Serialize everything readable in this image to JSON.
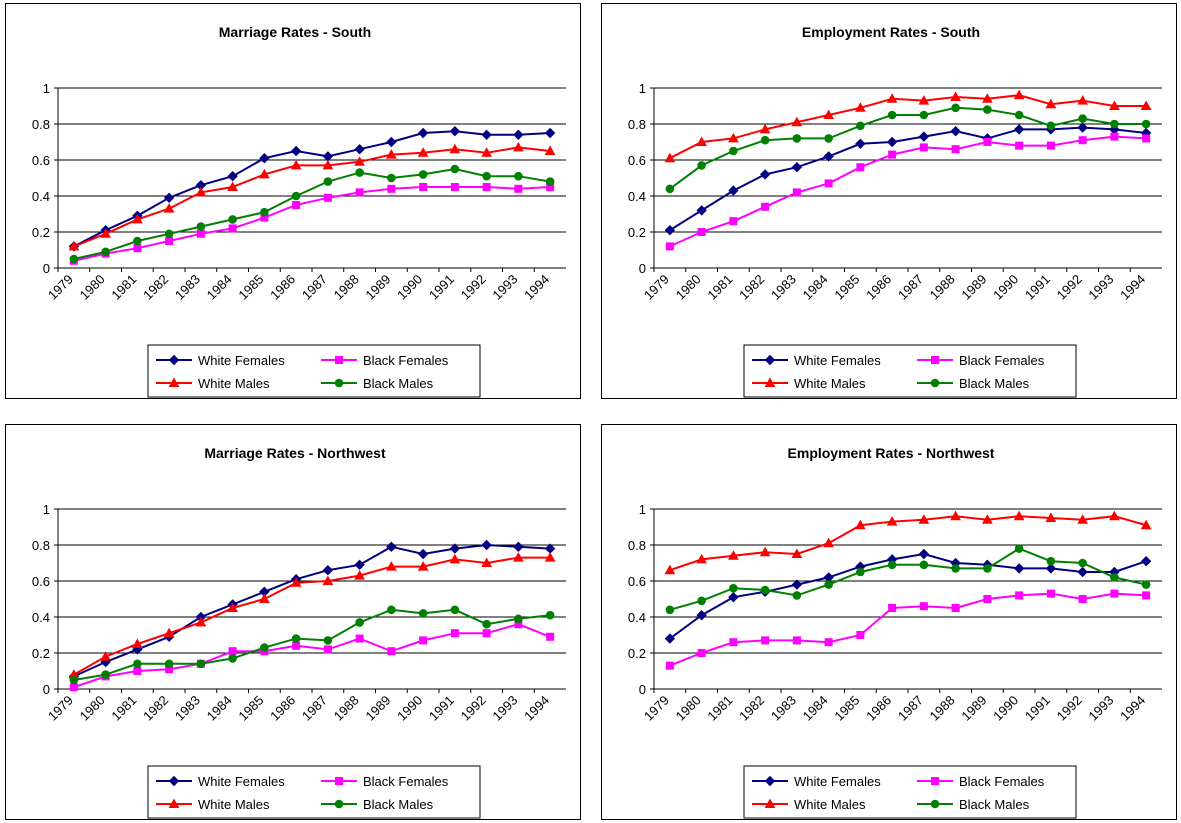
{
  "chart_data": [
    {
      "type": "line",
      "title": "Marriage Rates - South",
      "categories": [
        "1979",
        "1980",
        "1981",
        "1982",
        "1983",
        "1984",
        "1985",
        "1986",
        "1987",
        "1988",
        "1989",
        "1990",
        "1991",
        "1992",
        "1993",
        "1994"
      ],
      "ylim": [
        0,
        1
      ],
      "yticks": [
        0,
        0.2,
        0.4,
        0.6,
        0.8,
        1
      ],
      "grid": true,
      "series": [
        {
          "name": "White Females",
          "color": "#000080",
          "marker": "diamond",
          "values": [
            0.12,
            0.21,
            0.29,
            0.39,
            0.46,
            0.51,
            0.61,
            0.65,
            0.62,
            0.66,
            0.7,
            0.75,
            0.76,
            0.74,
            0.74,
            0.75
          ]
        },
        {
          "name": "Black Females",
          "color": "#ff00ff",
          "marker": "square",
          "values": [
            0.04,
            0.08,
            0.11,
            0.15,
            0.19,
            0.22,
            0.28,
            0.35,
            0.39,
            0.42,
            0.44,
            0.45,
            0.45,
            0.45,
            0.44,
            0.45
          ]
        },
        {
          "name": "White Males",
          "color": "#ff0000",
          "marker": "triangle",
          "values": [
            0.12,
            0.19,
            0.27,
            0.33,
            0.42,
            0.45,
            0.52,
            0.57,
            0.57,
            0.59,
            0.63,
            0.64,
            0.66,
            0.64,
            0.67,
            0.65
          ]
        },
        {
          "name": "Black Males",
          "color": "#008000",
          "marker": "circle",
          "values": [
            0.05,
            0.09,
            0.15,
            0.19,
            0.23,
            0.27,
            0.31,
            0.4,
            0.48,
            0.53,
            0.5,
            0.52,
            0.55,
            0.51,
            0.51,
            0.48
          ]
        }
      ]
    },
    {
      "type": "line",
      "title": "Employment Rates  - South",
      "categories": [
        "1979",
        "1980",
        "1981",
        "1982",
        "1983",
        "1984",
        "1985",
        "1986",
        "1987",
        "1988",
        "1989",
        "1990",
        "1991",
        "1992",
        "1993",
        "1994"
      ],
      "ylim": [
        0,
        1
      ],
      "yticks": [
        0,
        0.2,
        0.4,
        0.6,
        0.8,
        1
      ],
      "grid": true,
      "series": [
        {
          "name": "White Females",
          "color": "#000080",
          "marker": "diamond",
          "values": [
            0.21,
            0.32,
            0.43,
            0.52,
            0.56,
            0.62,
            0.69,
            0.7,
            0.73,
            0.76,
            0.72,
            0.77,
            0.77,
            0.78,
            0.77,
            0.75
          ]
        },
        {
          "name": "Black Females",
          "color": "#ff00ff",
          "marker": "square",
          "values": [
            0.12,
            0.2,
            0.26,
            0.34,
            0.42,
            0.47,
            0.56,
            0.63,
            0.67,
            0.66,
            0.7,
            0.68,
            0.68,
            0.71,
            0.73,
            0.72
          ]
        },
        {
          "name": "White Males",
          "color": "#ff0000",
          "marker": "triangle",
          "values": [
            0.61,
            0.7,
            0.72,
            0.77,
            0.81,
            0.85,
            0.89,
            0.94,
            0.93,
            0.95,
            0.94,
            0.96,
            0.91,
            0.93,
            0.9,
            0.9
          ]
        },
        {
          "name": "Black Males",
          "color": "#008000",
          "marker": "circle",
          "values": [
            0.44,
            0.57,
            0.65,
            0.71,
            0.72,
            0.72,
            0.79,
            0.85,
            0.85,
            0.89,
            0.88,
            0.85,
            0.79,
            0.83,
            0.8,
            0.8
          ]
        }
      ]
    },
    {
      "type": "line",
      "title": "Marriage Rates - Northwest",
      "categories": [
        "1979",
        "1980",
        "1981",
        "1982",
        "1983",
        "1984",
        "1985",
        "1986",
        "1987",
        "1988",
        "1989",
        "1990",
        "1991",
        "1992",
        "1993",
        "1994"
      ],
      "ylim": [
        0,
        1
      ],
      "yticks": [
        0,
        0.2,
        0.4,
        0.6,
        0.8,
        1
      ],
      "grid": true,
      "series": [
        {
          "name": "White Females",
          "color": "#000080",
          "marker": "diamond",
          "values": [
            0.07,
            0.15,
            0.22,
            0.29,
            0.4,
            0.47,
            0.54,
            0.61,
            0.66,
            0.69,
            0.79,
            0.75,
            0.78,
            0.8,
            0.79,
            0.78
          ]
        },
        {
          "name": "Black Females",
          "color": "#ff00ff",
          "marker": "square",
          "values": [
            0.01,
            0.07,
            0.1,
            0.11,
            0.14,
            0.21,
            0.21,
            0.24,
            0.22,
            0.28,
            0.21,
            0.27,
            0.31,
            0.31,
            0.36,
            0.29
          ]
        },
        {
          "name": "White Males",
          "color": "#ff0000",
          "marker": "triangle",
          "values": [
            0.08,
            0.18,
            0.25,
            0.31,
            0.37,
            0.45,
            0.5,
            0.59,
            0.6,
            0.63,
            0.68,
            0.68,
            0.72,
            0.7,
            0.73,
            0.73
          ]
        },
        {
          "name": "Black Males",
          "color": "#008000",
          "marker": "circle",
          "values": [
            0.05,
            0.08,
            0.14,
            0.14,
            0.14,
            0.17,
            0.23,
            0.28,
            0.27,
            0.37,
            0.44,
            0.42,
            0.44,
            0.36,
            0.39,
            0.41
          ]
        }
      ]
    },
    {
      "type": "line",
      "title": "Employment Rates - Northwest",
      "categories": [
        "1979",
        "1980",
        "1981",
        "1982",
        "1983",
        "1984",
        "1985",
        "1986",
        "1987",
        "1988",
        "1989",
        "1990",
        "1991",
        "1992",
        "1993",
        "1994"
      ],
      "ylim": [
        0,
        1
      ],
      "yticks": [
        0,
        0.2,
        0.4,
        0.6,
        0.8,
        1
      ],
      "grid": true,
      "series": [
        {
          "name": "White Females",
          "color": "#000080",
          "marker": "diamond",
          "values": [
            0.28,
            0.41,
            0.51,
            0.54,
            0.58,
            0.62,
            0.68,
            0.72,
            0.75,
            0.7,
            0.69,
            0.67,
            0.67,
            0.65,
            0.65,
            0.71
          ]
        },
        {
          "name": "Black Females",
          "color": "#ff00ff",
          "marker": "square",
          "values": [
            0.13,
            0.2,
            0.26,
            0.27,
            0.27,
            0.26,
            0.3,
            0.45,
            0.46,
            0.45,
            0.5,
            0.52,
            0.53,
            0.5,
            0.53,
            0.52
          ]
        },
        {
          "name": "White Males",
          "color": "#ff0000",
          "marker": "triangle",
          "values": [
            0.66,
            0.72,
            0.74,
            0.76,
            0.75,
            0.81,
            0.91,
            0.93,
            0.94,
            0.96,
            0.94,
            0.96,
            0.95,
            0.94,
            0.96,
            0.91
          ]
        },
        {
          "name": "Black Males",
          "color": "#008000",
          "marker": "circle",
          "values": [
            0.44,
            0.49,
            0.56,
            0.55,
            0.52,
            0.58,
            0.65,
            0.69,
            0.69,
            0.67,
            0.67,
            0.78,
            0.71,
            0.7,
            0.62,
            0.58
          ]
        }
      ]
    }
  ]
}
